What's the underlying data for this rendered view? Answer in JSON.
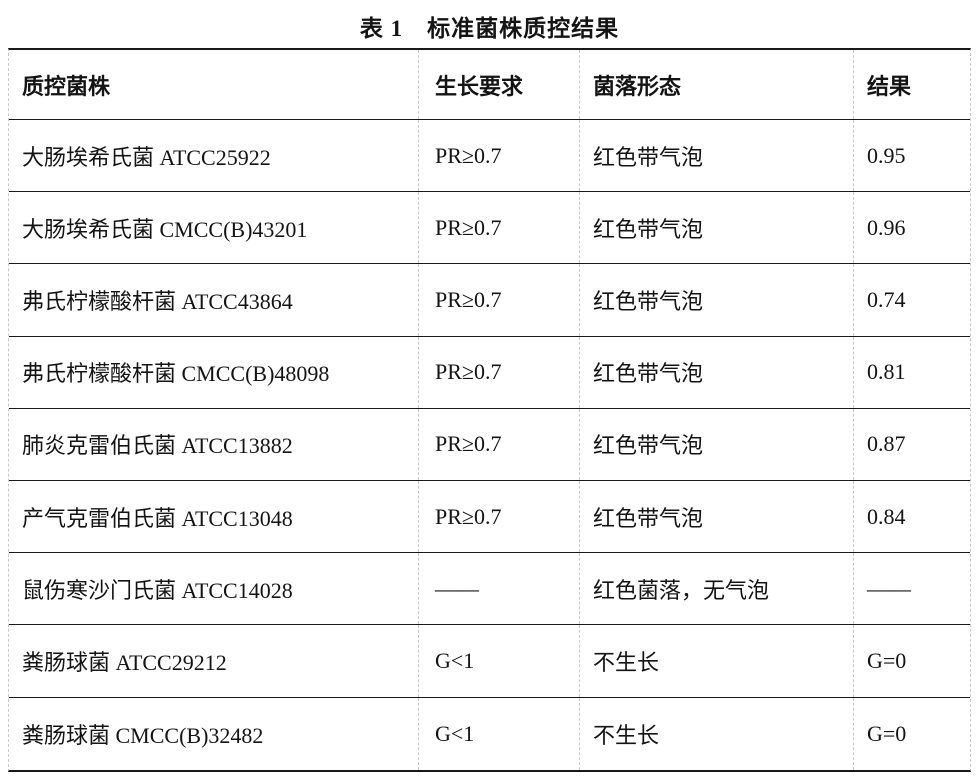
{
  "title": "表 1　标准菌株质控结果",
  "table": {
    "columns": [
      "质控菌株",
      "生长要求",
      "菌落形态",
      "结果"
    ],
    "rows": [
      [
        "大肠埃希氏菌 ATCC25922",
        "PR≥0.7",
        "红色带气泡",
        "0.95"
      ],
      [
        "大肠埃希氏菌 CMCC(B)43201",
        "PR≥0.7",
        "红色带气泡",
        "0.96"
      ],
      [
        "弗氏柠檬酸杆菌 ATCC43864",
        "PR≥0.7",
        "红色带气泡",
        "0.74"
      ],
      [
        "弗氏柠檬酸杆菌 CMCC(B)48098",
        "PR≥0.7",
        "红色带气泡",
        "0.81"
      ],
      [
        "肺炎克雷伯氏菌 ATCC13882",
        "PR≥0.7",
        "红色带气泡",
        "0.87"
      ],
      [
        "产气克雷伯氏菌 ATCC13048",
        "PR≥0.7",
        "红色带气泡",
        "0.84"
      ],
      [
        "鼠伤寒沙门氏菌 ATCC14028",
        "——",
        "红色菌落，无气泡",
        "——"
      ],
      [
        "粪肠球菌 ATCC29212",
        "G<1",
        "不生长",
        "G=0"
      ],
      [
        "粪肠球菌 CMCC(B)32482",
        "G<1",
        "不生长",
        "G=0"
      ]
    ]
  },
  "colors": {
    "border_solid": "#191919",
    "border_dashed": "#c9c9c9",
    "text": "#141414",
    "background": "#ffffff"
  }
}
